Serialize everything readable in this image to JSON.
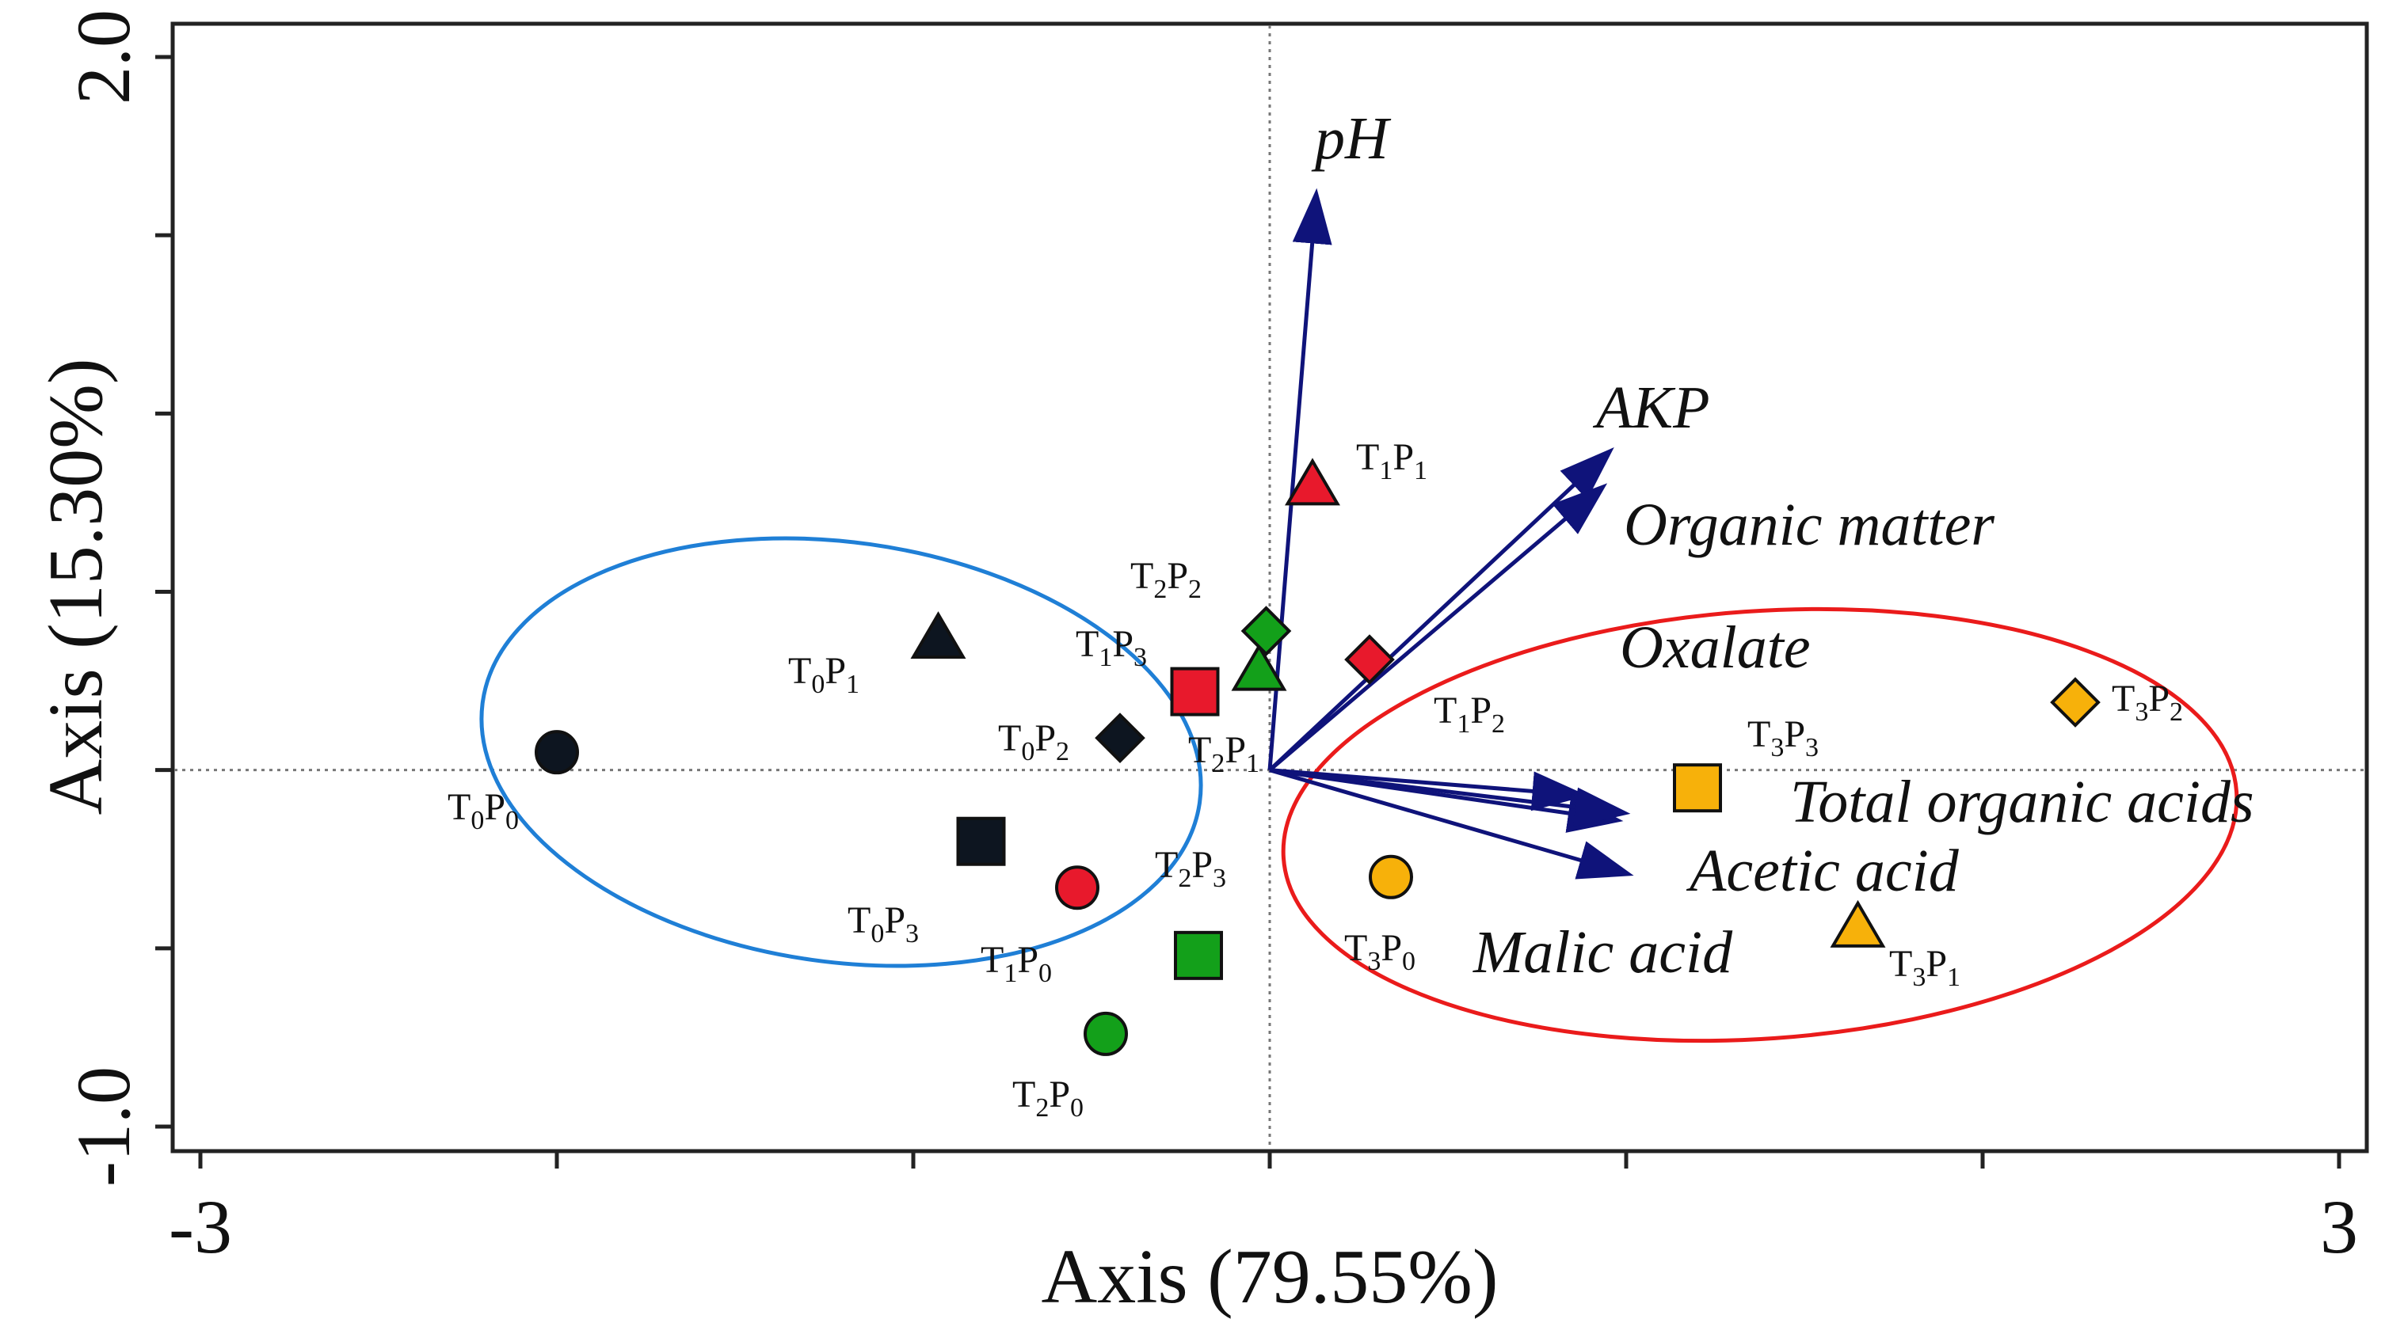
{
  "chart_data": {
    "type": "biplot",
    "xlabel": "Axis (79.55%)",
    "ylabel": "Axis (15.30%)",
    "xlim": [
      -3,
      3
    ],
    "ylim": [
      -1.0,
      2.0
    ],
    "x_tick_labels": [
      {
        "value": -3,
        "label": "-3"
      },
      {
        "value": 3,
        "label": "3"
      }
    ],
    "y_tick_labels": [
      {
        "value": 2.0,
        "label": "2.0"
      },
      {
        "value": -1.0,
        "label": "-1.0"
      }
    ],
    "x_minor_ticks": [
      -2,
      -1,
      0,
      1,
      2
    ],
    "y_minor_ticks": [
      1.5,
      1.0,
      0.5,
      0.0,
      -0.5
    ],
    "reference_lines": {
      "x": 0,
      "y": 0
    },
    "vectors": [
      {
        "name": "pH",
        "x": 0.13,
        "y": 1.61
      },
      {
        "name": "AKP",
        "x": 0.95,
        "y": 0.89
      },
      {
        "name": "Organic matter",
        "x": 0.93,
        "y": 0.79
      },
      {
        "name": "Oxalate",
        "x": 0.87,
        "y": -0.07
      },
      {
        "name": "Total organic acids",
        "x": 0.97,
        "y": -0.14
      },
      {
        "name": "Acetic acid",
        "x": 1.0,
        "y": -0.29
      },
      {
        "name": "Malic acid",
        "x": 0.99,
        "y": -0.12
      }
    ],
    "vector_label_positions_note": "labels drawn near arrow tips",
    "samples": [
      {
        "id": "T0P0",
        "t": "0",
        "p": "0",
        "shape": "circle",
        "color": "#0d1520",
        "x": -2.0,
        "y": 0.05
      },
      {
        "id": "T0P1",
        "t": "0",
        "p": "1",
        "shape": "triangle",
        "color": "#0d1520",
        "x": -0.93,
        "y": 0.37
      },
      {
        "id": "T0P2",
        "t": "0",
        "p": "2",
        "shape": "diamond",
        "color": "#0d1520",
        "x": -0.42,
        "y": 0.09
      },
      {
        "id": "T0P3",
        "t": "0",
        "p": "3",
        "shape": "square",
        "color": "#0d1520",
        "x": -0.81,
        "y": -0.2
      },
      {
        "id": "T1P0",
        "t": "1",
        "p": "0",
        "shape": "circle",
        "color": "#e8192c",
        "x": -0.54,
        "y": -0.33
      },
      {
        "id": "T1P1",
        "t": "1",
        "p": "1",
        "shape": "triangle",
        "color": "#e8192c",
        "x": 0.12,
        "y": 0.8
      },
      {
        "id": "T1P2",
        "t": "1",
        "p": "2",
        "shape": "diamond",
        "color": "#e8192c",
        "x": 0.28,
        "y": 0.31
      },
      {
        "id": "T1P3",
        "t": "1",
        "p": "3",
        "shape": "square",
        "color": "#e8192c",
        "x": -0.21,
        "y": 0.22
      },
      {
        "id": "T2P0",
        "t": "2",
        "p": "0",
        "shape": "circle",
        "color": "#13a01a",
        "x": -0.46,
        "y": -0.74
      },
      {
        "id": "T2P1",
        "t": "2",
        "p": "1",
        "shape": "triangle",
        "color": "#13a01a",
        "x": -0.03,
        "y": 0.28
      },
      {
        "id": "T2P2",
        "t": "2",
        "p": "2",
        "shape": "diamond",
        "color": "#13a01a",
        "x": -0.01,
        "y": 0.39
      },
      {
        "id": "T2P3",
        "t": "2",
        "p": "3",
        "shape": "square",
        "color": "#13a01a",
        "x": -0.2,
        "y": -0.52
      },
      {
        "id": "T3P0",
        "t": "3",
        "p": "0",
        "shape": "circle",
        "color": "#f7b10a",
        "x": 0.34,
        "y": -0.3
      },
      {
        "id": "T3P1",
        "t": "3",
        "p": "1",
        "shape": "triangle",
        "color": "#f7b10a",
        "x": 1.65,
        "y": -0.44
      },
      {
        "id": "T3P2",
        "t": "3",
        "p": "2",
        "shape": "diamond",
        "color": "#f7b10a",
        "x": 2.26,
        "y": 0.19
      },
      {
        "id": "T3P3",
        "t": "3",
        "p": "3",
        "shape": "square",
        "color": "#f7b10a",
        "x": 1.2,
        "y": -0.05
      }
    ],
    "groups": [
      {
        "name": "blue-ellipse",
        "color": "#1f7fd6",
        "members": [
          "T0P0",
          "T0P1",
          "T0P2",
          "T0P3",
          "T1P0",
          "T1P3"
        ]
      },
      {
        "name": "red-ellipse",
        "color": "#ea1b1b",
        "members": [
          "T3P0",
          "T3P1",
          "T3P2",
          "T3P3"
        ]
      }
    ],
    "vector_color": "#0f137a"
  }
}
